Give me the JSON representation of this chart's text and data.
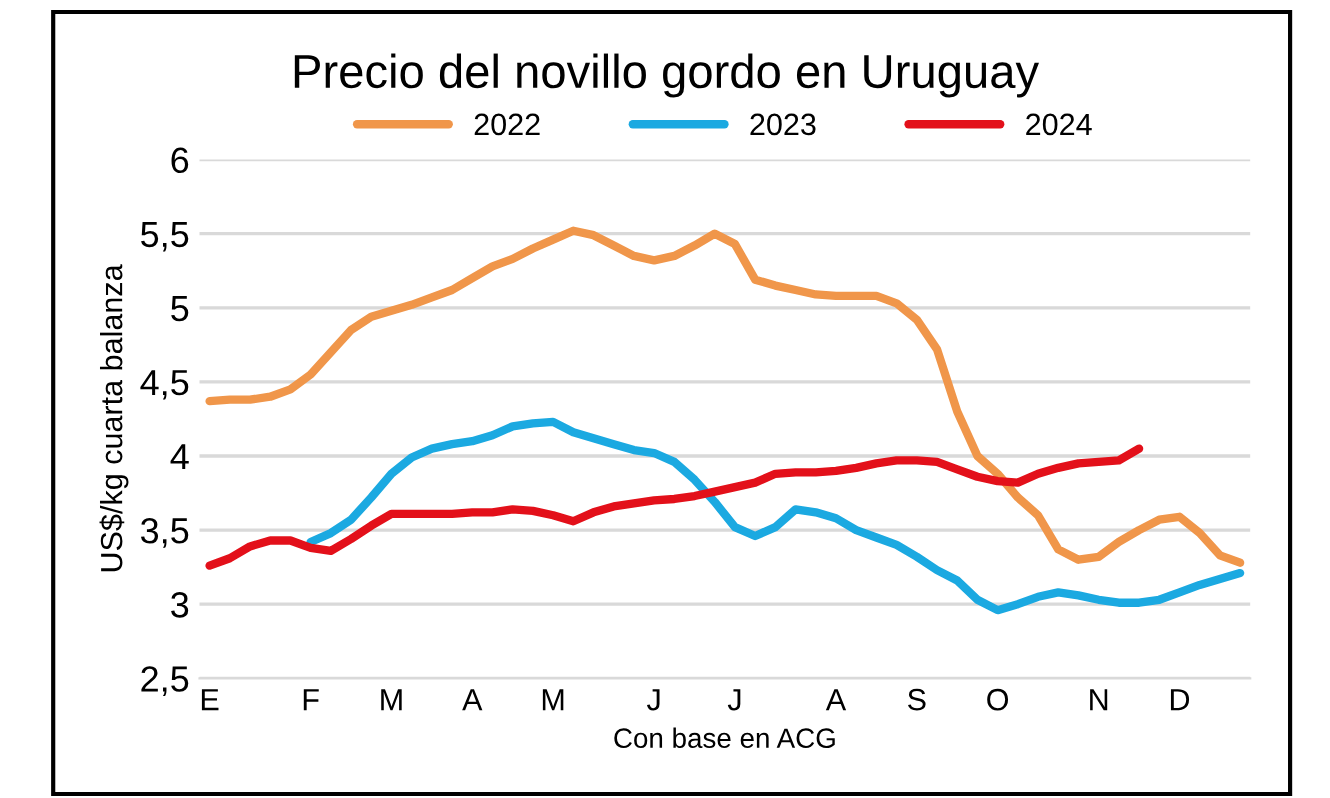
{
  "chart_data": {
    "type": "line",
    "title": "Precio del novillo gordo en Uruguay",
    "xlabel": "Con base en ACG",
    "ylabel": "US$/kg cuarta balanza",
    "categories": [
      "E",
      null,
      null,
      null,
      null,
      "F",
      null,
      null,
      null,
      "M",
      null,
      null,
      null,
      "A",
      null,
      null,
      null,
      "M",
      null,
      null,
      null,
      null,
      "J",
      null,
      null,
      null,
      "J",
      null,
      null,
      null,
      null,
      "A",
      null,
      null,
      null,
      "S",
      null,
      null,
      null,
      "O",
      null,
      null,
      null,
      null,
      "N",
      null,
      null,
      null,
      "D",
      null,
      null,
      null
    ],
    "series": [
      {
        "name": "2022",
        "color": "#f0964a",
        "values": [
          4.37,
          4.38,
          4.38,
          4.4,
          4.45,
          4.55,
          4.7,
          4.85,
          4.94,
          4.98,
          5.02,
          5.07,
          5.12,
          5.2,
          5.28,
          5.33,
          5.4,
          5.46,
          5.52,
          5.49,
          5.42,
          5.35,
          5.32,
          5.35,
          5.42,
          5.5,
          5.43,
          5.19,
          5.15,
          5.12,
          5.09,
          5.08,
          5.08,
          5.08,
          5.03,
          4.92,
          4.72,
          4.3,
          4.0,
          3.88,
          3.72,
          3.6,
          3.37,
          3.3,
          3.32,
          3.42,
          3.5,
          3.57,
          3.59,
          3.48,
          3.33,
          3.28
        ]
      },
      {
        "name": "2023",
        "color": "#1ba9e1",
        "values": [
          null,
          null,
          null,
          null,
          null,
          3.42,
          3.48,
          3.57,
          3.72,
          3.88,
          3.99,
          4.05,
          4.08,
          4.1,
          4.14,
          4.2,
          4.22,
          4.23,
          4.16,
          4.12,
          4.08,
          4.04,
          4.02,
          3.96,
          3.84,
          3.69,
          3.52,
          3.46,
          3.52,
          3.64,
          3.62,
          3.58,
          3.5,
          3.45,
          3.4,
          3.32,
          3.23,
          3.16,
          3.03,
          2.96,
          3.0,
          3.05,
          3.08,
          3.06,
          3.03,
          3.01,
          3.01,
          3.03,
          3.08,
          3.13,
          3.17,
          3.21
        ]
      },
      {
        "name": "2024",
        "color": "#e3101a",
        "values": [
          3.26,
          3.31,
          3.39,
          3.43,
          3.43,
          3.38,
          3.36,
          3.44,
          3.53,
          3.61,
          3.61,
          3.61,
          3.61,
          3.62,
          3.62,
          3.64,
          3.63,
          3.6,
          3.56,
          3.62,
          3.66,
          3.68,
          3.7,
          3.71,
          3.73,
          3.76,
          3.79,
          3.82,
          3.88,
          3.89,
          3.89,
          3.9,
          3.92,
          3.95,
          3.97,
          3.97,
          3.96,
          3.91,
          3.86,
          3.83,
          3.82,
          3.88,
          3.92,
          3.95,
          3.96,
          3.97,
          4.05,
          null,
          null,
          null,
          null,
          null
        ]
      }
    ],
    "ylim": [
      2.5,
      6
    ],
    "yticks": [
      {
        "value": 2.5,
        "label": "2,5"
      },
      {
        "value": 3,
        "label": "3"
      },
      {
        "value": 3.5,
        "label": "3,5"
      },
      {
        "value": 4,
        "label": "4"
      },
      {
        "value": 4.5,
        "label": "4,5"
      },
      {
        "value": 5,
        "label": "5"
      },
      {
        "value": 5.5,
        "label": "5,5"
      },
      {
        "value": 6,
        "label": "6"
      }
    ],
    "grid": "y",
    "legend": "top",
    "marker": "none",
    "line_style": "solid"
  }
}
